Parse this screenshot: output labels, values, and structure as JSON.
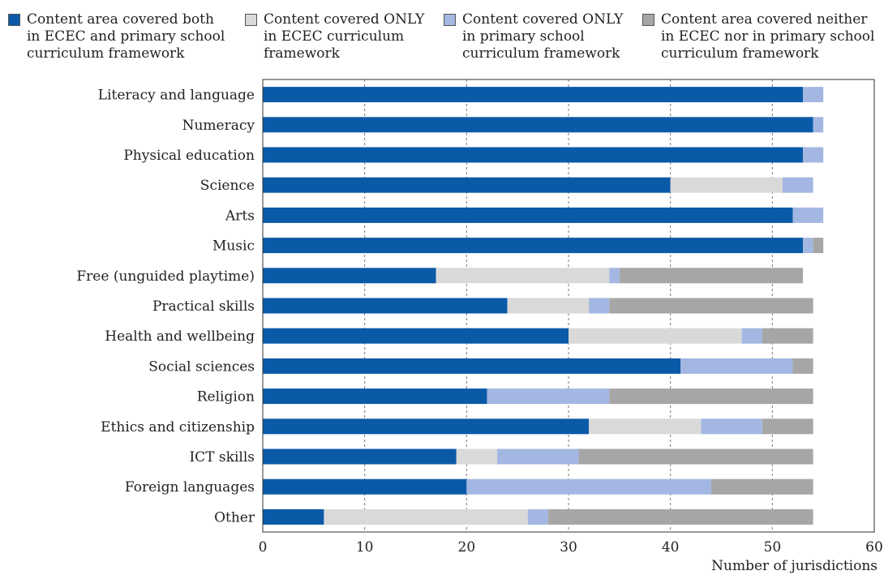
{
  "legend": {
    "items": [
      {
        "label": "Content area covered both\nin ECEC and primary school\ncurriculum framework",
        "color": "#0b5aa8"
      },
      {
        "label": "Content covered ONLY\nin ECEC curriculum\nframework",
        "color": "#d9d9d9"
      },
      {
        "label": "Content covered ONLY\nin primary school\ncurriculum framework",
        "color": "#a3b7e2"
      },
      {
        "label": "Content area covered neither\nin ECEC nor in primary school\ncurriculum framework",
        "color": "#a6a6a6"
      }
    ]
  },
  "chart_data": {
    "type": "bar",
    "orientation": "horizontal",
    "stacked": true,
    "categories": [
      "Literacy and language",
      "Numeracy",
      "Physical education",
      "Science",
      "Arts",
      "Music",
      "Free (unguided playtime)",
      "Practical skills",
      "Health and wellbeing",
      "Social sciences",
      "Religion",
      "Ethics and citizenship",
      "ICT skills",
      "Foreign languages",
      "Other"
    ],
    "series": [
      {
        "name": "Content area covered both in ECEC and primary school curriculum framework",
        "color": "#0b5aa8",
        "values": [
          53,
          54,
          53,
          40,
          52,
          53,
          17,
          24,
          30,
          41,
          22,
          32,
          19,
          20,
          6
        ]
      },
      {
        "name": "Content covered ONLY in ECEC curriculum framework",
        "color": "#d9d9d9",
        "values": [
          0,
          0,
          0,
          11,
          0,
          0,
          17,
          8,
          17,
          0,
          0,
          11,
          4,
          0,
          20
        ]
      },
      {
        "name": "Content covered ONLY in primary school curriculum framework",
        "color": "#a3b7e2",
        "values": [
          2,
          1,
          2,
          3,
          3,
          1,
          1,
          2,
          2,
          11,
          12,
          6,
          8,
          24,
          2
        ]
      },
      {
        "name": "Content area covered neither in ECEC nor in primary school curriculum framework",
        "color": "#a6a6a6",
        "values": [
          0,
          0,
          0,
          0,
          0,
          1,
          18,
          20,
          5,
          2,
          20,
          5,
          23,
          10,
          26
        ]
      }
    ],
    "xlabel": "Number of jurisdictions",
    "ylabel": "",
    "xlim": [
      0,
      60
    ],
    "xticks": [
      0,
      10,
      20,
      30,
      40,
      50,
      60
    ],
    "grid": "vertical dashed",
    "legend_position": "top"
  }
}
